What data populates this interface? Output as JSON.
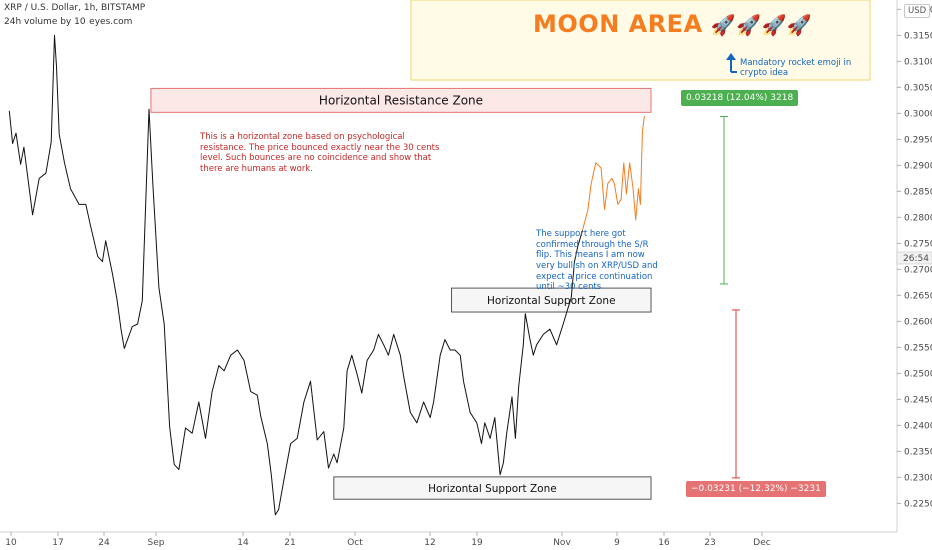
{
  "header": {
    "symbol_line": "XRP / U.S. Dollar, 1h, BITSTAMP",
    "volume_line": "24h volume by 10  eyes.com"
  },
  "currency_badge": "USD",
  "countdown_label": "26:54",
  "chart_data": {
    "type": "line",
    "title": "",
    "x_tick_labels": [
      "10",
      "17",
      "24",
      "Sep",
      "14",
      "21",
      "Oct",
      "12",
      "19",
      "Nov",
      "9",
      "16",
      "23",
      "Dec"
    ],
    "y_ticks": [
      0.225,
      0.23,
      0.235,
      0.24,
      0.245,
      0.25,
      0.255,
      0.26,
      0.265,
      0.27,
      0.275,
      0.28,
      0.285,
      0.29,
      0.295,
      0.3,
      0.305,
      0.31,
      0.315,
      0.32
    ],
    "y_tick_labels": [
      "0.22500",
      "0.23000",
      "0.23500",
      "0.24000",
      "0.24500",
      "0.25000",
      "0.25500",
      "0.26000",
      "0.26500",
      "0.27000",
      "0.27500",
      "0.28000",
      "0.28500",
      "0.29000",
      "0.29500",
      "0.30000",
      "0.30500",
      "0.31000",
      "0.31500",
      "0.32000"
    ],
    "ylim": [
      0.2195,
      0.3218
    ],
    "series": [
      {
        "color": "#111111",
        "points": [
          [
            0,
            0.3005
          ],
          [
            0.5,
            0.2942
          ],
          [
            1,
            0.2962
          ],
          [
            1.7,
            0.2902
          ],
          [
            2.2,
            0.2935
          ],
          [
            3.5,
            0.2805
          ],
          [
            4.5,
            0.2875
          ],
          [
            5.5,
            0.2885
          ],
          [
            6.3,
            0.2945
          ],
          [
            6.8,
            0.315
          ],
          [
            7.1,
            0.309
          ],
          [
            7.5,
            0.296
          ],
          [
            8.3,
            0.2905
          ],
          [
            9.2,
            0.2855
          ],
          [
            10.5,
            0.2825
          ],
          [
            11.5,
            0.2825
          ],
          [
            12.2,
            0.2785
          ],
          [
            13.3,
            0.2725
          ],
          [
            14,
            0.2715
          ],
          [
            14.5,
            0.2755
          ],
          [
            15.5,
            0.2692
          ],
          [
            16.2,
            0.2642
          ],
          [
            16.8,
            0.2585
          ],
          [
            17.3,
            0.2548
          ],
          [
            18.5,
            0.259
          ],
          [
            19.3,
            0.2595
          ],
          [
            20,
            0.264
          ],
          [
            21,
            0.3008
          ],
          [
            21.6,
            0.2862
          ],
          [
            22.5,
            0.2665
          ],
          [
            23.3,
            0.2595
          ],
          [
            24.1,
            0.2398
          ],
          [
            24.8,
            0.2325
          ],
          [
            25.5,
            0.2315
          ],
          [
            26.5,
            0.2395
          ],
          [
            27.5,
            0.2385
          ],
          [
            28.5,
            0.2445
          ],
          [
            29.5,
            0.2375
          ],
          [
            30.5,
            0.2465
          ],
          [
            31.5,
            0.2515
          ],
          [
            32.3,
            0.2505
          ],
          [
            33.3,
            0.2535
          ],
          [
            34.3,
            0.2545
          ],
          [
            35.3,
            0.2525
          ],
          [
            36.3,
            0.2465
          ],
          [
            37.3,
            0.2458
          ],
          [
            37.8,
            0.2418
          ],
          [
            38.8,
            0.2365
          ],
          [
            39.4,
            0.2305
          ],
          [
            40,
            0.2228
          ],
          [
            40.5,
            0.2238
          ],
          [
            41.3,
            0.2295
          ],
          [
            42.3,
            0.2365
          ],
          [
            43.3,
            0.2375
          ],
          [
            44.3,
            0.2445
          ],
          [
            45.3,
            0.2485
          ],
          [
            46.3,
            0.2372
          ],
          [
            47.3,
            0.2388
          ],
          [
            48,
            0.2318
          ],
          [
            48.8,
            0.2345
          ],
          [
            49.3,
            0.2328
          ],
          [
            50.3,
            0.2395
          ],
          [
            50.8,
            0.2505
          ],
          [
            51.5,
            0.2535
          ],
          [
            52.3,
            0.2498
          ],
          [
            53,
            0.2462
          ],
          [
            53.8,
            0.2525
          ],
          [
            54.8,
            0.2545
          ],
          [
            55.5,
            0.2575
          ],
          [
            56.3,
            0.2555
          ],
          [
            57,
            0.2535
          ],
          [
            57.8,
            0.2575
          ],
          [
            58.8,
            0.2535
          ],
          [
            59.3,
            0.2495
          ],
          [
            60.3,
            0.2425
          ],
          [
            61.3,
            0.2405
          ],
          [
            62.3,
            0.2445
          ],
          [
            63.3,
            0.2415
          ],
          [
            63.8,
            0.2445
          ],
          [
            64.8,
            0.2535
          ],
          [
            65.5,
            0.2565
          ],
          [
            66.3,
            0.2545
          ],
          [
            67,
            0.2545
          ],
          [
            67.8,
            0.2535
          ],
          [
            68.3,
            0.2485
          ],
          [
            69.3,
            0.2425
          ],
          [
            70.3,
            0.2405
          ],
          [
            71,
            0.2365
          ],
          [
            71.5,
            0.2405
          ],
          [
            72.3,
            0.2375
          ],
          [
            73,
            0.2415
          ],
          [
            73.8,
            0.2305
          ],
          [
            74.3,
            0.2328
          ],
          [
            74.8,
            0.2385
          ],
          [
            75.6,
            0.2455
          ],
          [
            76.1,
            0.2375
          ],
          [
            76.6,
            0.2475
          ],
          [
            77.3,
            0.2555
          ],
          [
            77.6,
            0.2615
          ],
          [
            78.3,
            0.2565
          ],
          [
            78.8,
            0.2535
          ],
          [
            79.3,
            0.2555
          ],
          [
            80.3,
            0.2575
          ],
          [
            81.3,
            0.2585
          ],
          [
            82.3,
            0.2555
          ],
          [
            83.3,
            0.2595
          ],
          [
            84,
            0.2625
          ],
          [
            84.5,
            0.2645
          ],
          [
            85,
            0.2715
          ],
          [
            85.5,
            0.2745
          ],
          [
            86.2,
            0.2775
          ]
        ]
      },
      {
        "color": "#f57c1f",
        "points": [
          [
            86.2,
            0.2775
          ],
          [
            87,
            0.2815
          ],
          [
            87.5,
            0.2865
          ],
          [
            88.2,
            0.2905
          ],
          [
            89,
            0.2895
          ],
          [
            89.5,
            0.2815
          ],
          [
            90,
            0.2865
          ],
          [
            90.6,
            0.2875
          ],
          [
            91,
            0.2865
          ],
          [
            91.5,
            0.2825
          ],
          [
            92,
            0.2835
          ],
          [
            92.4,
            0.2905
          ],
          [
            92.8,
            0.2845
          ],
          [
            93.3,
            0.2905
          ],
          [
            93.8,
            0.2855
          ],
          [
            94.2,
            0.2795
          ],
          [
            94.6,
            0.2855
          ],
          [
            94.9,
            0.2825
          ],
          [
            95.2,
            0.2965
          ],
          [
            95.5,
            0.2995
          ]
        ]
      }
    ]
  },
  "annotations": {
    "resistance_zone": {
      "label": "Horizontal Resistance Zone",
      "y_top": 0.3048,
      "y_bottom": 0.3002,
      "x_start": 21.3,
      "x_end": 96.5
    },
    "support_zone_upper": {
      "label": "Horizontal Support Zone",
      "y_top": 0.2664,
      "y_bottom": 0.2618,
      "x_start": 66.5,
      "x_end": 96.5
    },
    "support_zone_lower": {
      "label": "Horizontal Support Zone",
      "y_top": 0.2301,
      "y_bottom": 0.2258,
      "x_start": 48.8,
      "x_end": 96.5
    },
    "resistance_note": "This is a horizontal zone based on psychological resistance. The price bounced exactly near the 30 cents level. Such bounces are no coincidence and show that there are humans at work.",
    "support_note": "The support here got confirmed through the S/R flip. This means I am now very bullish on XRP/USD and expect a price continuation until ~30 cents",
    "moon_title": "MOON AREA",
    "moon_emoji": "🚀🚀🚀🚀",
    "moon_note": "Mandatory rocket emoji in crypto idea",
    "measure_up": {
      "label": "0.03218 (12.04%) 3218",
      "y_from": 0.2672,
      "y_to": 0.2994,
      "color": "#4caf50"
    },
    "measure_down": {
      "label": "−0.03231 (−12.32%) −3231",
      "y_from": 0.2622,
      "y_to": 0.2299,
      "color": "#e53935"
    }
  },
  "colors": {
    "resistance_fill": "#fde8e8",
    "resistance_border": "#e57373",
    "support_fill": "#f6f6f6",
    "support_border": "#555555",
    "red_text": "#c62828",
    "blue_text": "#1565c0",
    "moon_text": "#f57c1f",
    "moon_fill": "#fffbe6",
    "moon_border": "#f2d56b"
  }
}
